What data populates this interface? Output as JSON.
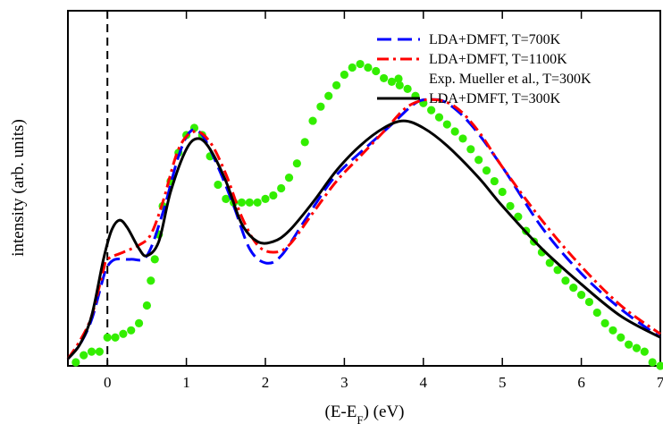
{
  "chart_data": {
    "type": "line",
    "title": "",
    "xlabel": "(E-E",
    "xlabel_sub": "F",
    "xlabel_suffix": ") (eV)",
    "ylabel": "intensity (arb. units)",
    "xlim": [
      -0.5,
      7
    ],
    "ylim": [
      0,
      1
    ],
    "xticks": [
      0,
      1,
      2,
      3,
      4,
      5,
      6,
      7
    ],
    "xtick_labels": [
      "0",
      "1",
      "2",
      "3",
      "4",
      "5",
      "6",
      "7"
    ],
    "yticks_visible": false,
    "grid": false,
    "legend_position": "top-right",
    "fermi_line": {
      "x": 0,
      "style": "dashed",
      "color": "#000000"
    },
    "series": [
      {
        "name": "LDA+DMFT, T=700K",
        "style": "dashed",
        "color": "#0000ff",
        "points": [
          [
            -0.5,
            0.02
          ],
          [
            -0.35,
            0.06
          ],
          [
            -0.2,
            0.13
          ],
          [
            -0.05,
            0.25
          ],
          [
            0.0,
            0.28
          ],
          [
            0.1,
            0.3
          ],
          [
            0.3,
            0.3
          ],
          [
            0.5,
            0.31
          ],
          [
            0.7,
            0.43
          ],
          [
            0.9,
            0.59
          ],
          [
            1.05,
            0.66
          ],
          [
            1.2,
            0.65
          ],
          [
            1.4,
            0.56
          ],
          [
            1.6,
            0.45
          ],
          [
            1.8,
            0.33
          ],
          [
            2.0,
            0.29
          ],
          [
            2.2,
            0.31
          ],
          [
            2.5,
            0.41
          ],
          [
            2.8,
            0.51
          ],
          [
            3.0,
            0.56
          ],
          [
            3.3,
            0.62
          ],
          [
            3.6,
            0.68
          ],
          [
            3.9,
            0.74
          ],
          [
            4.1,
            0.75
          ],
          [
            4.3,
            0.74
          ],
          [
            4.6,
            0.68
          ],
          [
            5.0,
            0.56
          ],
          [
            5.5,
            0.39
          ],
          [
            6.0,
            0.26
          ],
          [
            6.5,
            0.16
          ],
          [
            7.0,
            0.08
          ]
        ]
      },
      {
        "name": "LDA+DMFT, T=1100K",
        "style": "dash-dot",
        "color": "#ff0000",
        "points": [
          [
            -0.5,
            0.02
          ],
          [
            -0.35,
            0.07
          ],
          [
            -0.2,
            0.14
          ],
          [
            -0.05,
            0.27
          ],
          [
            0.0,
            0.3
          ],
          [
            0.2,
            0.32
          ],
          [
            0.4,
            0.34
          ],
          [
            0.55,
            0.37
          ],
          [
            0.7,
            0.46
          ],
          [
            0.9,
            0.61
          ],
          [
            1.1,
            0.66
          ],
          [
            1.3,
            0.63
          ],
          [
            1.5,
            0.54
          ],
          [
            1.7,
            0.42
          ],
          [
            1.9,
            0.34
          ],
          [
            2.1,
            0.32
          ],
          [
            2.3,
            0.34
          ],
          [
            2.6,
            0.43
          ],
          [
            2.9,
            0.52
          ],
          [
            3.2,
            0.59
          ],
          [
            3.5,
            0.66
          ],
          [
            3.8,
            0.73
          ],
          [
            4.1,
            0.75
          ],
          [
            4.4,
            0.73
          ],
          [
            4.7,
            0.66
          ],
          [
            5.0,
            0.56
          ],
          [
            5.5,
            0.41
          ],
          [
            6.0,
            0.28
          ],
          [
            6.5,
            0.17
          ],
          [
            7.0,
            0.09
          ]
        ]
      },
      {
        "name": "Exp. Mueller et al., T=300K",
        "style": "markers",
        "color": "#33ee00",
        "points": [
          [
            -0.4,
            0.01
          ],
          [
            -0.3,
            0.03
          ],
          [
            -0.2,
            0.04
          ],
          [
            -0.1,
            0.04
          ],
          [
            0.0,
            0.08
          ],
          [
            0.1,
            0.08
          ],
          [
            0.2,
            0.09
          ],
          [
            0.3,
            0.1
          ],
          [
            0.4,
            0.12
          ],
          [
            0.5,
            0.17
          ],
          [
            0.55,
            0.24
          ],
          [
            0.6,
            0.3
          ],
          [
            0.65,
            0.37
          ],
          [
            0.7,
            0.45
          ],
          [
            0.8,
            0.52
          ],
          [
            0.9,
            0.6
          ],
          [
            1.0,
            0.65
          ],
          [
            1.1,
            0.67
          ],
          [
            1.2,
            0.65
          ],
          [
            1.3,
            0.59
          ],
          [
            1.4,
            0.51
          ],
          [
            1.5,
            0.47
          ],
          [
            1.6,
            0.46
          ],
          [
            1.7,
            0.46
          ],
          [
            1.8,
            0.46
          ],
          [
            1.9,
            0.46
          ],
          [
            2.0,
            0.47
          ],
          [
            2.1,
            0.48
          ],
          [
            2.2,
            0.5
          ],
          [
            2.3,
            0.53
          ],
          [
            2.4,
            0.57
          ],
          [
            2.5,
            0.63
          ],
          [
            2.6,
            0.69
          ],
          [
            2.7,
            0.73
          ],
          [
            2.8,
            0.76
          ],
          [
            2.9,
            0.79
          ],
          [
            3.0,
            0.82
          ],
          [
            3.1,
            0.84
          ],
          [
            3.2,
            0.85
          ],
          [
            3.3,
            0.84
          ],
          [
            3.4,
            0.83
          ],
          [
            3.5,
            0.81
          ],
          [
            3.6,
            0.8
          ],
          [
            3.7,
            0.79
          ],
          [
            3.8,
            0.78
          ],
          [
            3.9,
            0.76
          ],
          [
            4.0,
            0.74
          ],
          [
            4.1,
            0.72
          ],
          [
            4.2,
            0.7
          ],
          [
            4.3,
            0.68
          ],
          [
            4.4,
            0.66
          ],
          [
            4.5,
            0.64
          ],
          [
            4.6,
            0.61
          ],
          [
            4.7,
            0.58
          ],
          [
            4.8,
            0.55
          ],
          [
            4.9,
            0.52
          ],
          [
            5.0,
            0.49
          ],
          [
            5.1,
            0.45
          ],
          [
            5.2,
            0.42
          ],
          [
            5.3,
            0.38
          ],
          [
            5.4,
            0.35
          ],
          [
            5.5,
            0.32
          ],
          [
            5.6,
            0.29
          ],
          [
            5.7,
            0.27
          ],
          [
            5.8,
            0.24
          ],
          [
            5.9,
            0.22
          ],
          [
            6.0,
            0.2
          ],
          [
            6.1,
            0.18
          ],
          [
            6.2,
            0.15
          ],
          [
            6.3,
            0.12
          ],
          [
            6.4,
            0.1
          ],
          [
            6.5,
            0.08
          ],
          [
            6.6,
            0.06
          ],
          [
            6.7,
            0.05
          ],
          [
            6.8,
            0.04
          ],
          [
            6.9,
            0.01
          ],
          [
            7.0,
            0.0
          ]
        ]
      },
      {
        "name": "LDA+DMFT, T=300K",
        "style": "solid",
        "color": "#000000",
        "points": [
          [
            -0.5,
            0.02
          ],
          [
            -0.35,
            0.06
          ],
          [
            -0.2,
            0.14
          ],
          [
            -0.05,
            0.3
          ],
          [
            0.05,
            0.38
          ],
          [
            0.15,
            0.41
          ],
          [
            0.25,
            0.39
          ],
          [
            0.4,
            0.33
          ],
          [
            0.5,
            0.31
          ],
          [
            0.65,
            0.35
          ],
          [
            0.8,
            0.49
          ],
          [
            1.0,
            0.61
          ],
          [
            1.15,
            0.64
          ],
          [
            1.3,
            0.61
          ],
          [
            1.5,
            0.52
          ],
          [
            1.7,
            0.4
          ],
          [
            1.9,
            0.35
          ],
          [
            2.1,
            0.35
          ],
          [
            2.3,
            0.38
          ],
          [
            2.6,
            0.46
          ],
          [
            2.9,
            0.55
          ],
          [
            3.2,
            0.62
          ],
          [
            3.5,
            0.67
          ],
          [
            3.75,
            0.69
          ],
          [
            4.0,
            0.67
          ],
          [
            4.3,
            0.62
          ],
          [
            4.7,
            0.53
          ],
          [
            5.0,
            0.45
          ],
          [
            5.5,
            0.33
          ],
          [
            6.0,
            0.23
          ],
          [
            6.5,
            0.14
          ],
          [
            7.0,
            0.08
          ]
        ]
      }
    ]
  }
}
